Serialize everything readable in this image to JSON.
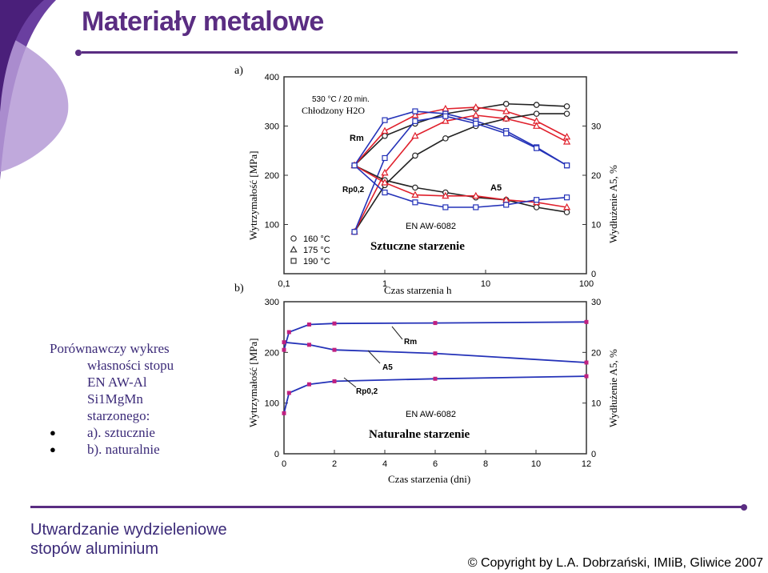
{
  "slide": {
    "title": "Materiały metalowe",
    "description": {
      "line1": "Porównawczy wykres",
      "line2": "własności stopu",
      "line3": "EN AW-Al",
      "line4": "Si1MgMn",
      "line5": "starzonego:",
      "bullets": [
        "a). sztucznie",
        "b). naturalnie"
      ]
    },
    "footer_left": [
      "Utwardzanie wydzieleniowe",
      "stopów aluminium"
    ],
    "copyright": "© Copyright by L.A. Dobrzański, IMIiB, Gliwice 2007"
  },
  "colors": {
    "accent": "#5a2d82",
    "text": "#3b2a78",
    "black_series": "#222222",
    "red_series": "#e0202c",
    "blue_series": "#2432b8"
  },
  "chart_data": [
    {
      "type": "line",
      "panel": "a)",
      "title": "Sztuczne starzenie",
      "annotation_top": "530 °C / 20 min.",
      "annotation_cooled": "Chłodzony H2O",
      "material": "EN AW-6082",
      "xlabel": "Czas starzenia h",
      "xscale": "log",
      "xlim": [
        0.1,
        100
      ],
      "xticks": [
        "0,1",
        "1",
        "10",
        "100"
      ],
      "ylabel": "Wytrzymałość [MPa]",
      "ylim": [
        0,
        400
      ],
      "yticks": [
        "100",
        "200",
        "300",
        "400"
      ],
      "y2label": "Wydłużenie A5, %",
      "y2lim": [
        0,
        40
      ],
      "y2ticks": [
        "0",
        "10",
        "20",
        "30"
      ],
      "labels": {
        "rm": "Rm",
        "rp": "Rp0,2",
        "a5": "A5"
      },
      "legend": [
        {
          "marker": "circle",
          "label": "160 °C",
          "color": "#222222"
        },
        {
          "marker": "triangle",
          "label": "175 °C",
          "color": "#e0202c"
        },
        {
          "marker": "square",
          "label": "190 °C",
          "color": "#2432b8"
        }
      ],
      "series": [
        {
          "name": "160 °C",
          "property": "Rm",
          "x": [
            0.5,
            1,
            2,
            4,
            8,
            16,
            32,
            64
          ],
          "y": [
            220,
            280,
            305,
            325,
            335,
            345,
            343,
            340
          ]
        },
        {
          "name": "175 °C",
          "property": "Rm",
          "x": [
            0.5,
            1,
            2,
            4,
            8,
            16,
            32,
            64
          ],
          "y": [
            220,
            290,
            322,
            335,
            338,
            330,
            310,
            278
          ]
        },
        {
          "name": "190 °C",
          "property": "Rm",
          "x": [
            0.5,
            1,
            2,
            4,
            8,
            16,
            32,
            64
          ],
          "y": [
            220,
            312,
            330,
            325,
            310,
            290,
            257,
            220
          ]
        },
        {
          "name": "160 °C",
          "property": "Rp0,2",
          "x": [
            0.5,
            1,
            2,
            4,
            8,
            16,
            32,
            64
          ],
          "y": [
            85,
            180,
            240,
            275,
            300,
            315,
            325,
            325
          ]
        },
        {
          "name": "175 °C",
          "property": "Rp0,2",
          "x": [
            0.5,
            1,
            2,
            4,
            8,
            16,
            32,
            64
          ],
          "y": [
            85,
            205,
            280,
            310,
            322,
            315,
            300,
            268
          ]
        },
        {
          "name": "190 °C",
          "property": "Rp0,2",
          "x": [
            0.5,
            1,
            2,
            4,
            8,
            16,
            32,
            64
          ],
          "y": [
            85,
            235,
            310,
            320,
            305,
            285,
            255,
            220
          ]
        },
        {
          "name": "160 °C",
          "property": "A5",
          "x": [
            0.5,
            1,
            2,
            4,
            8,
            16,
            32,
            64
          ],
          "y2": [
            22,
            19,
            17.5,
            16.5,
            15.5,
            15,
            13.5,
            12.5
          ]
        },
        {
          "name": "175 °C",
          "property": "A5",
          "x": [
            0.5,
            1,
            2,
            4,
            8,
            16,
            32,
            64
          ],
          "y2": [
            22,
            18.5,
            16,
            15.8,
            15.8,
            15,
            14.5,
            13.5
          ]
        },
        {
          "name": "190 °C",
          "property": "A5",
          "x": [
            0.5,
            1,
            2,
            4,
            8,
            16,
            32,
            64
          ],
          "y2": [
            22,
            16.5,
            14.5,
            13.5,
            13.5,
            14,
            15,
            15.5
          ]
        }
      ]
    },
    {
      "type": "line",
      "panel": "b)",
      "title": "Naturalne starzenie",
      "material": "EN AW-6082",
      "xlabel": "Czas starzenia (dni)",
      "xlim": [
        0,
        12
      ],
      "xticks": [
        "0",
        "2",
        "4",
        "6",
        "8",
        "10",
        "12"
      ],
      "ylabel": "Wytrzymałość [MPa]",
      "ylim": [
        0,
        300
      ],
      "yticks": [
        "0",
        "100",
        "200",
        "300"
      ],
      "y2label": "Wydłużenie A5, %",
      "y2lim": [
        0,
        30
      ],
      "y2ticks": [
        "0",
        "10",
        "20",
        "30"
      ],
      "labels": {
        "rm": "Rm",
        "rp": "Rp0,2",
        "a5": "A5"
      },
      "series": [
        {
          "property": "Rm",
          "x": [
            0,
            0.2,
            1,
            2,
            6,
            12
          ],
          "y": [
            205,
            240,
            255,
            257,
            258,
            260
          ]
        },
        {
          "property": "A5",
          "x": [
            0,
            1,
            2,
            6,
            12
          ],
          "y2": [
            22,
            21.5,
            20.5,
            19.8,
            18
          ]
        },
        {
          "property": "Rp0,2",
          "x": [
            0,
            0.2,
            1,
            2,
            6,
            12
          ],
          "y": [
            80,
            120,
            137,
            143,
            148,
            153
          ]
        }
      ]
    }
  ]
}
